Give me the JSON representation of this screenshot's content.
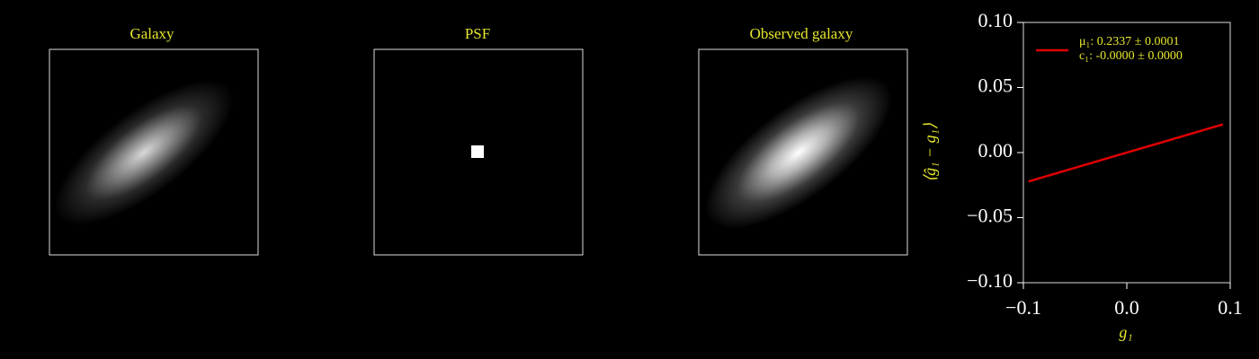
{
  "images": [
    {
      "title": "Galaxy"
    },
    {
      "title": "PSF"
    },
    {
      "title": "Observed galaxy"
    }
  ],
  "chart_data": {
    "type": "line",
    "xlabel": "g₁",
    "ylabel": "⟨ĝ₁ − g₁⟩",
    "xlim": [
      -0.1,
      0.1
    ],
    "ylim": [
      -0.1,
      0.1
    ],
    "xticks": [
      {
        "value": -0.1,
        "label": "−0.1"
      },
      {
        "value": 0,
        "label": "0.0"
      },
      {
        "value": 0.1,
        "label": "0.1"
      }
    ],
    "yticks": [
      {
        "value": -0.1,
        "label": "−0.10"
      },
      {
        "value": -0.05,
        "label": "−0.05"
      },
      {
        "value": 0,
        "label": "0.00"
      },
      {
        "value": 0.05,
        "label": "0.05"
      },
      {
        "value": 0.1,
        "label": "0.10"
      }
    ],
    "legend": "upper left",
    "series": [
      {
        "color": "#3a6fd8",
        "dashed": true,
        "x": [
          -0.09,
          -0.06,
          -0.03,
          0,
          0.03,
          0.06,
          0.09
        ],
        "values": [
          -0.021,
          -0.014,
          -0.007,
          0,
          0.007,
          0.014,
          0.021
        ]
      },
      {
        "name": [
          "μ₁: 0.2337 ± 0.0001",
          "c₁: -0.0000 ± 0.0000"
        ],
        "color": "#e00000",
        "x": [
          -0.095,
          0.093
        ],
        "values": [
          -0.0222,
          0.0217
        ]
      }
    ]
  }
}
